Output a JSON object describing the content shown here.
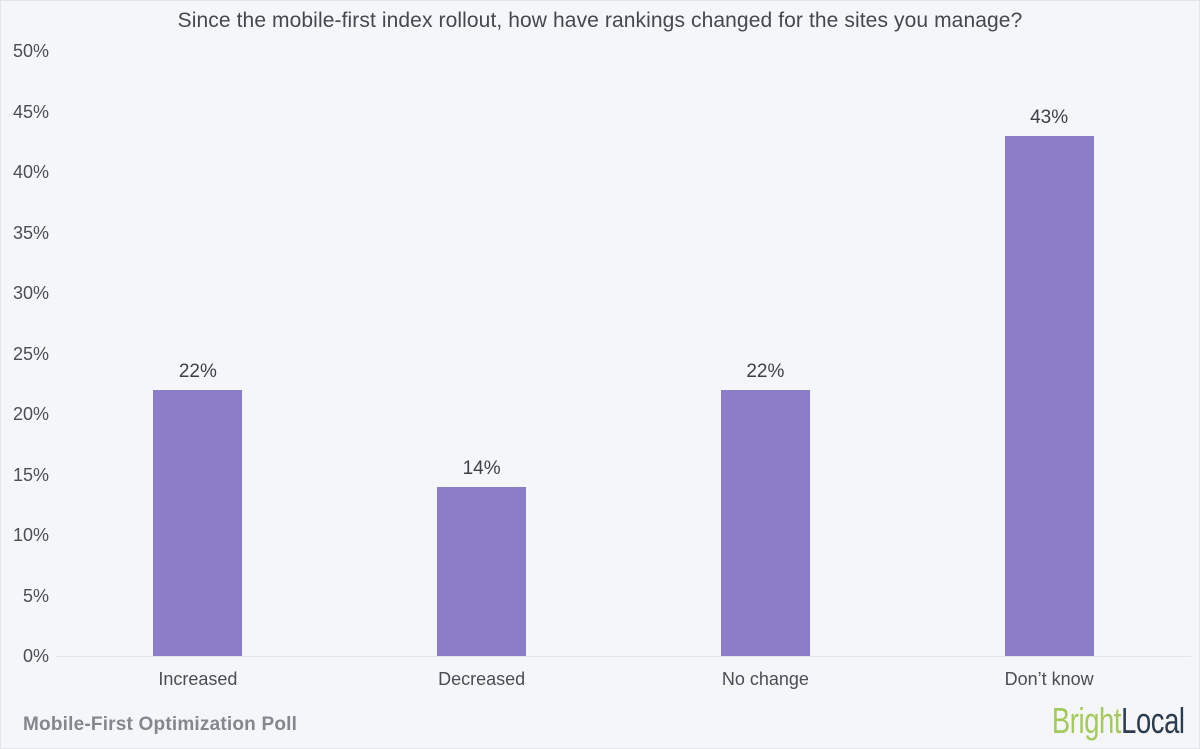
{
  "chart_data": {
    "type": "bar",
    "title": "Since the mobile-first index rollout, how have rankings changed for the sites you manage?",
    "categories": [
      "Increased",
      "Decreased",
      "No change",
      "Don’t know"
    ],
    "values": [
      22,
      14,
      22,
      43
    ],
    "value_labels": [
      "22%",
      "14%",
      "22%",
      "43%"
    ],
    "xlabel": "",
    "ylabel": "",
    "ylim": [
      0,
      50
    ],
    "ytick_step": 5,
    "ytick_labels": [
      "0%",
      "5%",
      "10%",
      "15%",
      "20%",
      "25%",
      "30%",
      "35%",
      "40%",
      "45%",
      "50%"
    ],
    "grid": false,
    "legend": false,
    "bar_color": "#8b7dc8"
  },
  "footer": {
    "caption": "Mobile-First Optimization Poll",
    "logo": {
      "part1": "Bright",
      "part2": "Local",
      "part1_color": "#a6c95e",
      "part2_color": "#2c3b4d"
    }
  },
  "colors": {
    "background": "#f4f6f9",
    "axis_line": "#e5e6e9",
    "title_text": "#45494e",
    "tick_text": "#4b4f54",
    "value_text": "#3d4145",
    "caption_text": "#84878c"
  }
}
